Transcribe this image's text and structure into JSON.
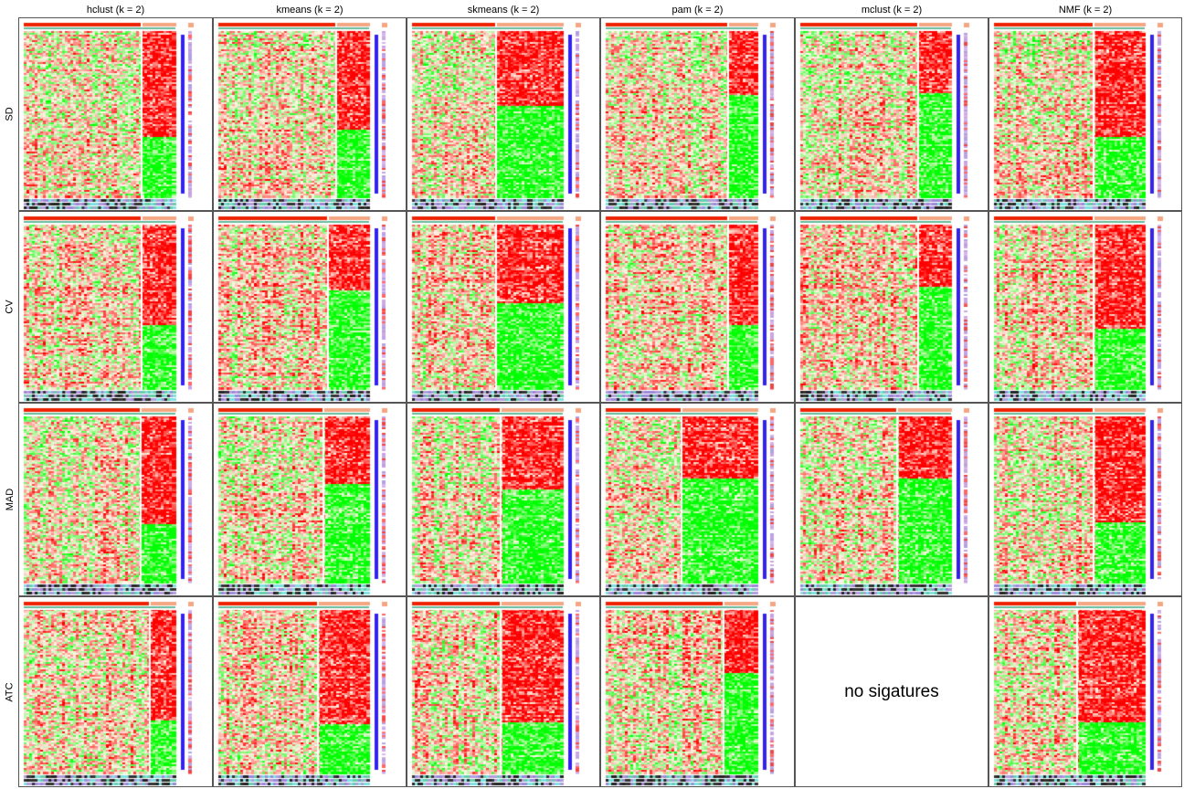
{
  "columns": [
    "hclust (k = 2)",
    "kmeans (k = 2)",
    "skmeans (k = 2)",
    "pam (k = 2)",
    "mclust (k = 2)",
    "NMF (k = 2)"
  ],
  "rows": [
    "SD",
    "CV",
    "MAD",
    "ATC"
  ],
  "empty_message": "no sigatures",
  "colors": {
    "high": "#ff0000",
    "low": "#00ff00",
    "mid": "#fff5e6",
    "class1": "#f08080",
    "class2": "#ff3300",
    "track_dark": "#222222",
    "track_teal": "#66cdaa",
    "track_cyan": "#7fe0e0",
    "track_violet": "#b39ddb",
    "bar_blue": "#3322ee"
  },
  "chart_data": {
    "type": "heatmap",
    "layout": "grid",
    "x_facets": [
      "hclust (k = 2)",
      "kmeans (k = 2)",
      "skmeans (k = 2)",
      "pam (k = 2)",
      "mclust (k = 2)",
      "NMF (k = 2)"
    ],
    "y_facets": [
      "SD",
      "CV",
      "MAD",
      "ATC"
    ],
    "panels": [
      {
        "row": "SD",
        "col": "hclust (k = 2)",
        "has_signatures": true
      },
      {
        "row": "SD",
        "col": "kmeans (k = 2)",
        "has_signatures": true
      },
      {
        "row": "SD",
        "col": "skmeans (k = 2)",
        "has_signatures": true
      },
      {
        "row": "SD",
        "col": "pam (k = 2)",
        "has_signatures": true
      },
      {
        "row": "SD",
        "col": "mclust (k = 2)",
        "has_signatures": true
      },
      {
        "row": "SD",
        "col": "NMF (k = 2)",
        "has_signatures": true
      },
      {
        "row": "CV",
        "col": "hclust (k = 2)",
        "has_signatures": true
      },
      {
        "row": "CV",
        "col": "kmeans (k = 2)",
        "has_signatures": true
      },
      {
        "row": "CV",
        "col": "skmeans (k = 2)",
        "has_signatures": true
      },
      {
        "row": "CV",
        "col": "pam (k = 2)",
        "has_signatures": true
      },
      {
        "row": "CV",
        "col": "mclust (k = 2)",
        "has_signatures": true
      },
      {
        "row": "CV",
        "col": "NMF (k = 2)",
        "has_signatures": true
      },
      {
        "row": "MAD",
        "col": "hclust (k = 2)",
        "has_signatures": true
      },
      {
        "row": "MAD",
        "col": "kmeans (k = 2)",
        "has_signatures": true
      },
      {
        "row": "MAD",
        "col": "skmeans (k = 2)",
        "has_signatures": true
      },
      {
        "row": "MAD",
        "col": "pam (k = 2)",
        "has_signatures": true
      },
      {
        "row": "MAD",
        "col": "mclust (k = 2)",
        "has_signatures": true
      },
      {
        "row": "MAD",
        "col": "NMF (k = 2)",
        "has_signatures": true
      },
      {
        "row": "ATC",
        "col": "hclust (k = 2)",
        "has_signatures": true
      },
      {
        "row": "ATC",
        "col": "kmeans (k = 2)",
        "has_signatures": true
      },
      {
        "row": "ATC",
        "col": "skmeans (k = 2)",
        "has_signatures": true
      },
      {
        "row": "ATC",
        "col": "pam (k = 2)",
        "has_signatures": true
      },
      {
        "row": "ATC",
        "col": "mclust (k = 2)",
        "has_signatures": false
      },
      {
        "row": "ATC",
        "col": "NMF (k = 2)",
        "has_signatures": true
      }
    ]
  }
}
